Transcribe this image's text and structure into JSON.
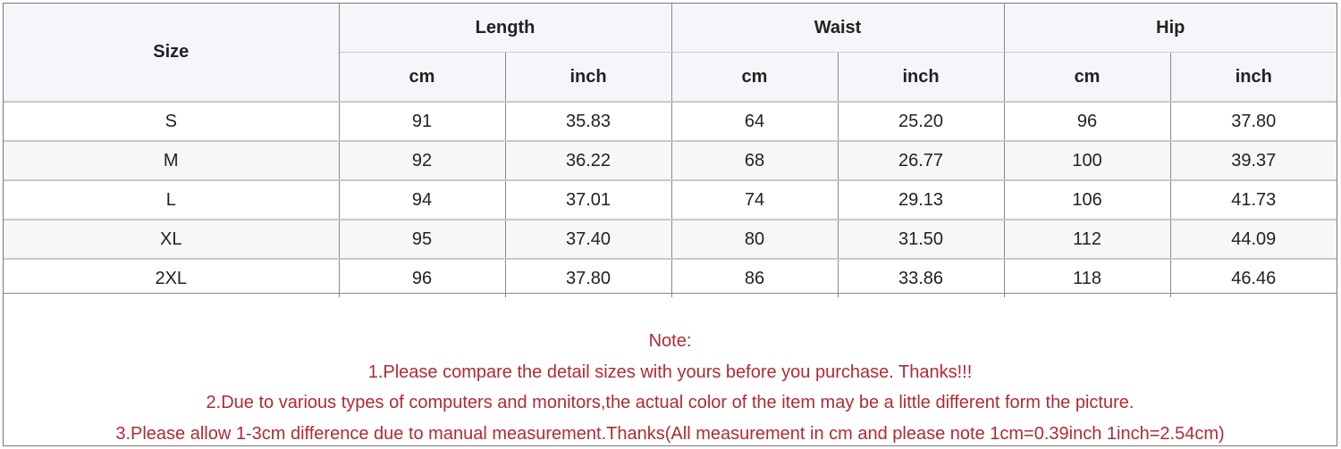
{
  "table": {
    "size_header": "Size",
    "groups": [
      "Length",
      "Waist",
      "Hip"
    ],
    "units": [
      "cm",
      "inch",
      "cm",
      "inch",
      "cm",
      "inch"
    ],
    "rows": [
      [
        "S",
        "91",
        "35.83",
        "64",
        "25.20",
        "96",
        "37.80"
      ],
      [
        "M",
        "92",
        "36.22",
        "68",
        "26.77",
        "100",
        "39.37"
      ],
      [
        "L",
        "94",
        "37.01",
        "74",
        "29.13",
        "106",
        "41.73"
      ],
      [
        "XL",
        "95",
        "37.40",
        "80",
        "31.50",
        "112",
        "44.09"
      ],
      [
        "2XL",
        "96",
        "37.80",
        "86",
        "33.86",
        "118",
        "46.46"
      ]
    ]
  },
  "notes": {
    "title": "Note:",
    "lines": [
      "1.Please compare the detail sizes with yours before you purchase. Thanks!!!",
      "2.Due to various types of computers and monitors,the actual color of the item may be a little different form the picture.",
      "3.Please allow 1-3cm difference due to manual measurement.Thanks(All measurement in cm and please note 1cm=0.39inch 1inch=2.54cm)"
    ],
    "color": "#b22a33"
  }
}
